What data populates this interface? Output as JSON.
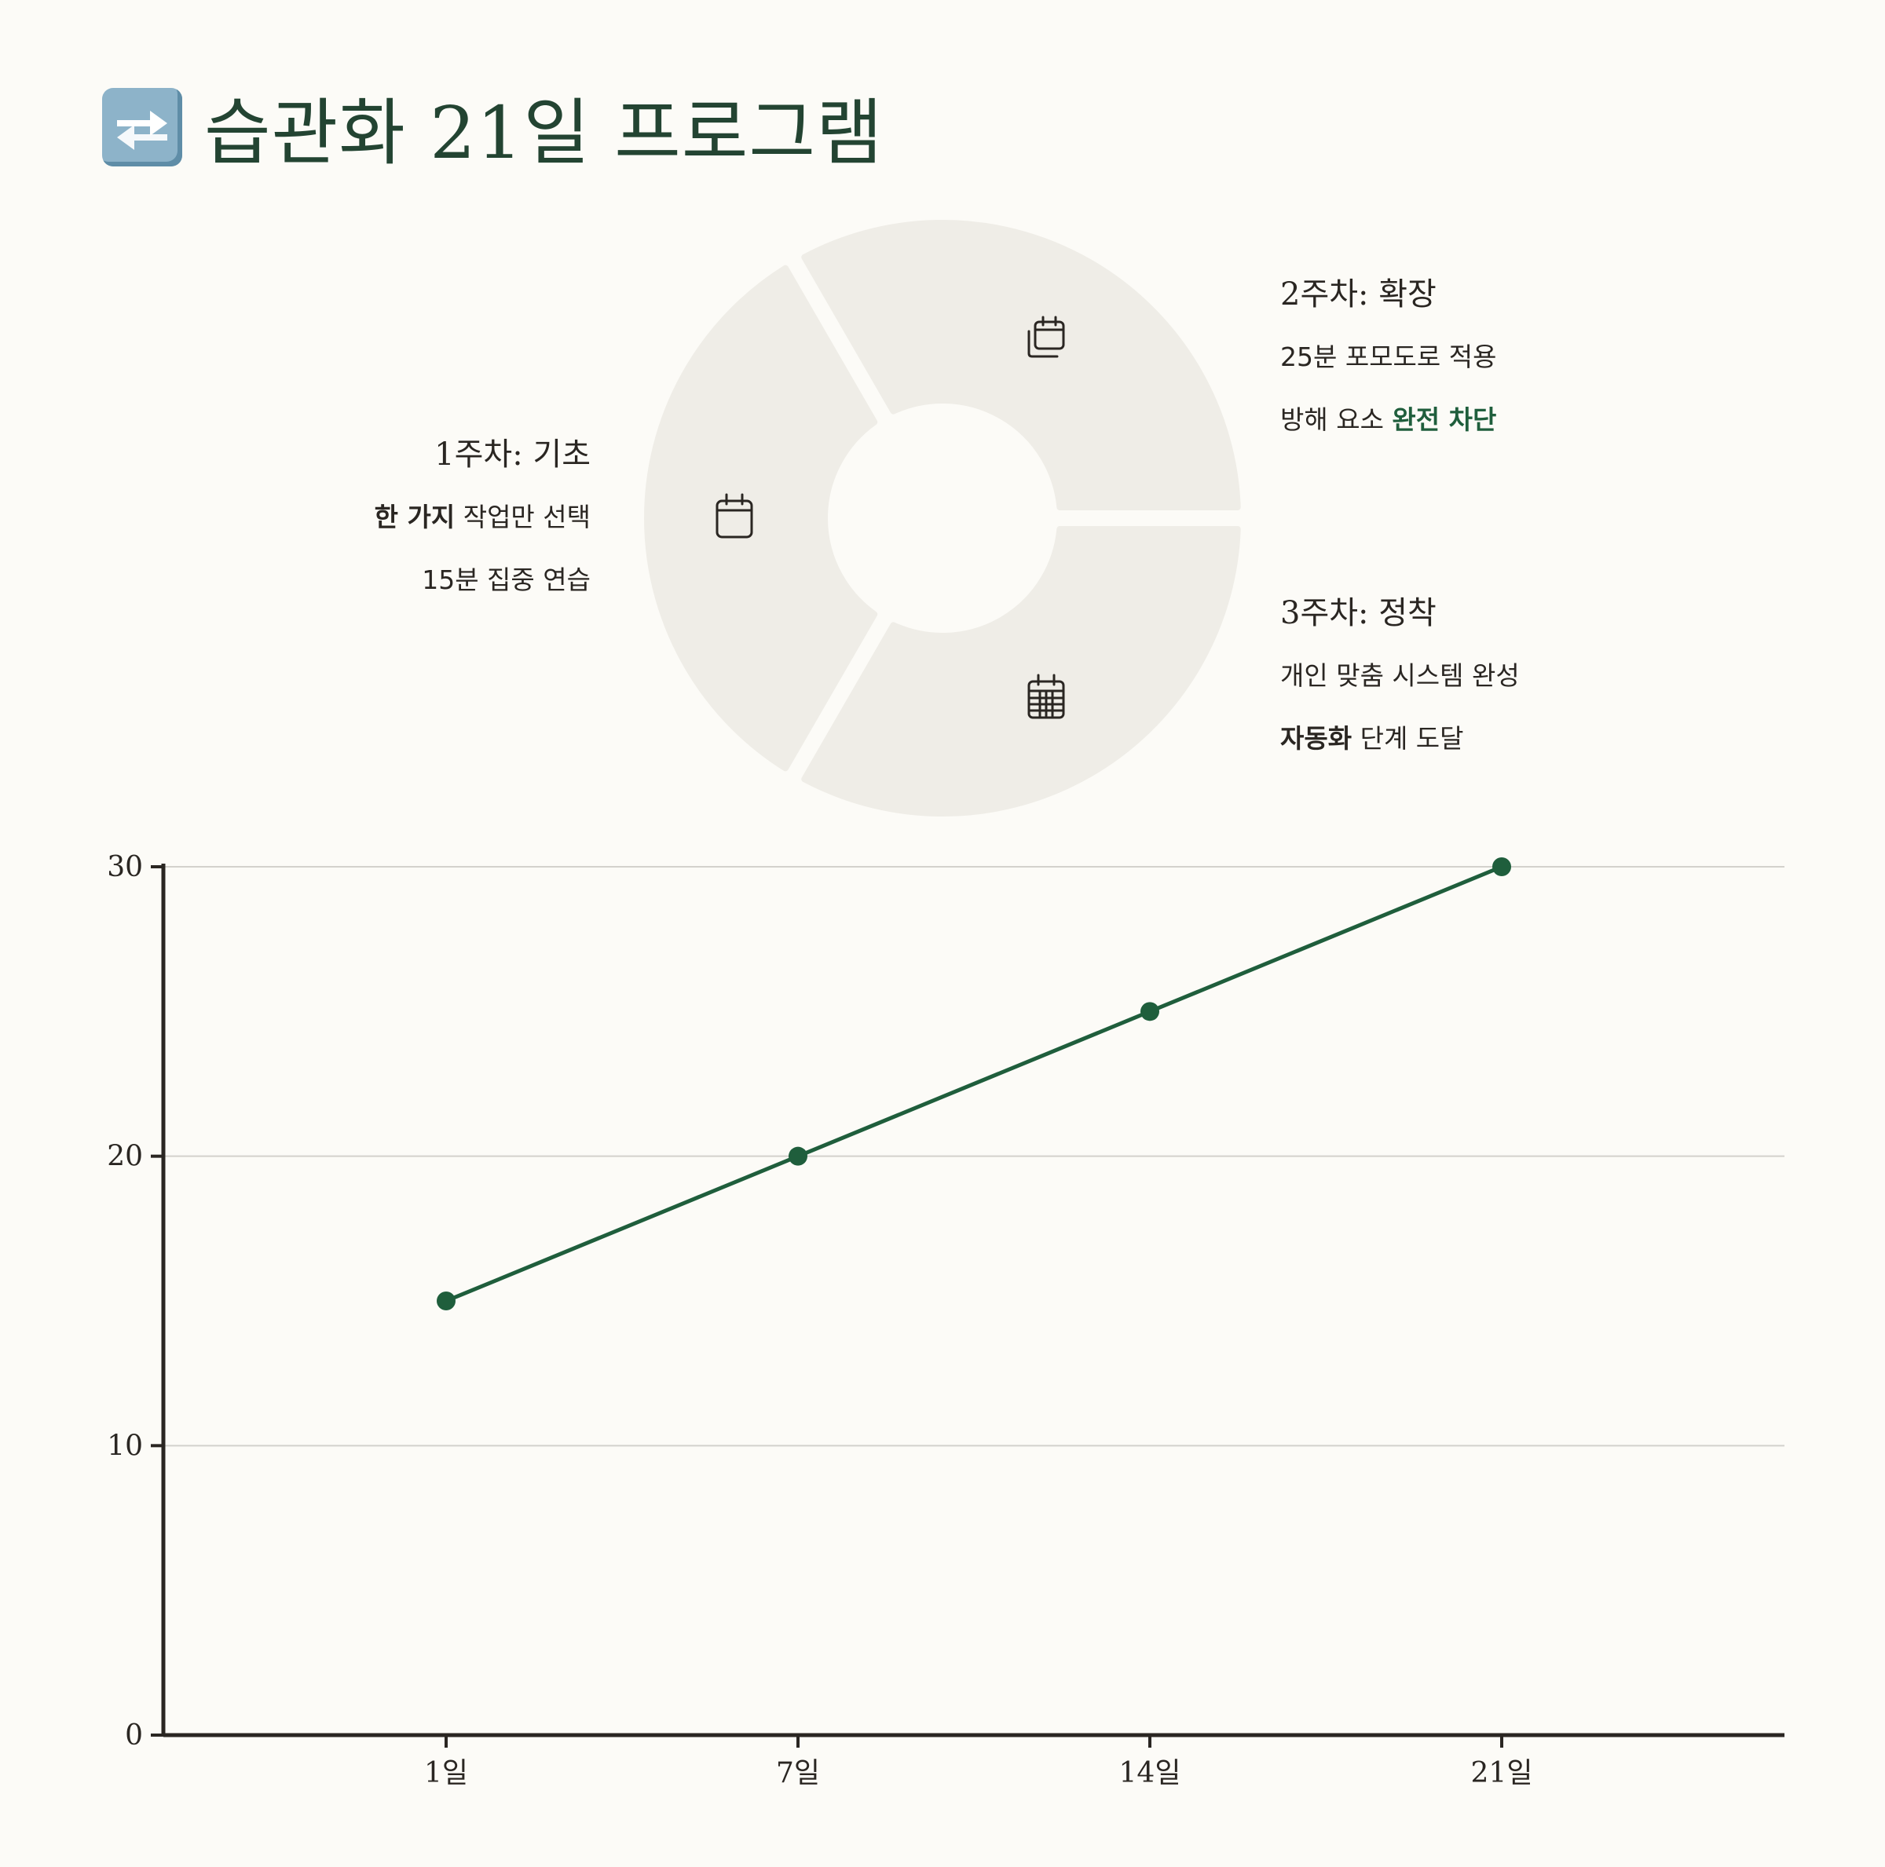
{
  "title": {
    "icon": "arrows-cycle-icon",
    "text": "습관화 21일 프로그램"
  },
  "colors": {
    "accent": "#1f5e3c",
    "segment": "#efede7",
    "background": "#fcfbf7",
    "title": "#234432"
  },
  "weeks": [
    {
      "title": "1주차: 기초",
      "icon": "calendar-icon",
      "lines": [
        [
          {
            "text": "한 가지",
            "style": "bold"
          },
          {
            "text": " 작업만 선택",
            "style": "normal"
          }
        ],
        [
          {
            "text": "15분 집중 연습",
            "style": "normal"
          }
        ]
      ]
    },
    {
      "title": "2주차: 확장",
      "icon": "calendar-stack-icon",
      "lines": [
        [
          {
            "text": "25분 포모도로 적용",
            "style": "normal"
          }
        ],
        [
          {
            "text": "방해 요소 ",
            "style": "normal"
          },
          {
            "text": "완전 차단",
            "style": "green"
          }
        ]
      ]
    },
    {
      "title": "3주차: 정착",
      "icon": "calendar-grid-icon",
      "lines": [
        [
          {
            "text": "개인 맞춤 시스템 완성",
            "style": "normal"
          }
        ],
        [
          {
            "text": "자동화",
            "style": "bold"
          },
          {
            "text": " 단계 도달",
            "style": "normal"
          }
        ]
      ]
    }
  ],
  "chart_data": {
    "type": "line",
    "categories": [
      "1일",
      "7일",
      "14일",
      "21일"
    ],
    "series": [
      {
        "values": [
          15,
          20,
          25,
          30
        ]
      }
    ],
    "ylim": [
      0,
      30
    ],
    "yticks": [
      0,
      10,
      20,
      30
    ],
    "grid": true,
    "title": "",
    "xlabel": "",
    "ylabel": ""
  }
}
